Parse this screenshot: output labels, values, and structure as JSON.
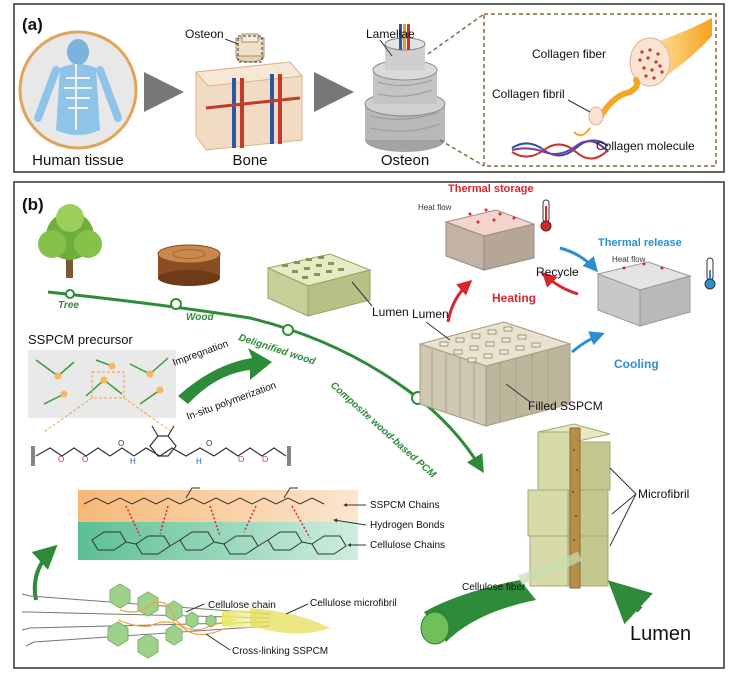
{
  "panel_a": {
    "label": "(a)",
    "human_tissue": "Human tissue",
    "bone": "Bone",
    "osteon_caption": "Osteon",
    "osteon_callout": "Osteon",
    "lamellae": "Lamellae",
    "collagen_fiber": "Collagen fiber",
    "collagen_fibril": "Collagen fibril",
    "collagen_molecule": "Collagen molecule"
  },
  "panel_b": {
    "label": "(b)",
    "tree": "Tree",
    "wood": "Wood",
    "delignified_wood": "Delignified wood",
    "composite_pcm": "Composite wood-based PCM",
    "sspcm_precursor": "SSPCM precursor",
    "impregnation": "Impregnation",
    "in_situ": "In-situ polymerization",
    "lumen_small": "Lumen",
    "thermal_storage": "Thermal storage",
    "thermal_release": "Thermal release",
    "heat_flow_left": "Heat flow",
    "heat_flow_right": "Heat flow",
    "recycle": "Recycle",
    "heating": "Heating",
    "cooling": "Cooling",
    "filled_sspcm": "Filled SSPCM",
    "microfibril": "Microfibril",
    "lumen_big": "Lumen",
    "sspcm_chains": "SSPCM Chains",
    "hydrogen_bonds": "Hydrogen Bonds",
    "cellulose_chains": "Cellulose Chains",
    "cellulose_chain": "Cellulose chain",
    "cellulose_microfibril": "Cellulose microfibril",
    "cellulose_fiber": "Cellulose fiber",
    "cross_linking": "Cross-linking SSPCM"
  },
  "colors": {
    "green_path": "#2e8b3a",
    "heat_red": "#d8262b",
    "cool_blue": "#2a8fd0",
    "wood_green": "#cdd7a6",
    "wood_gray": "#c9c3b2"
  }
}
